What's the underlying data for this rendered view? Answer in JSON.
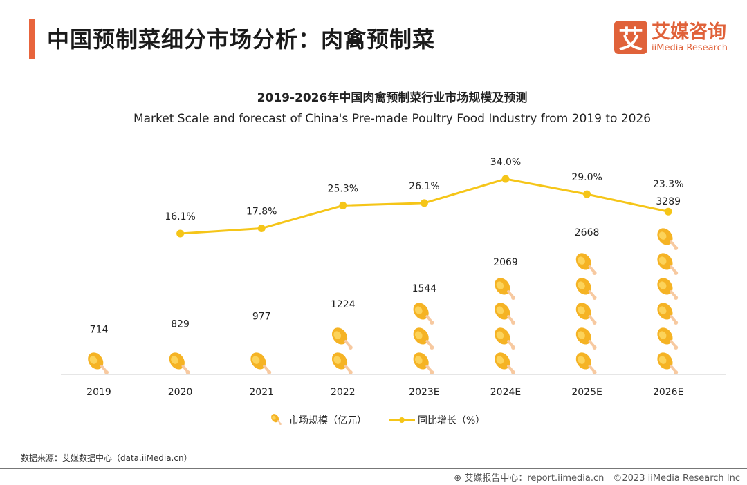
{
  "header": {
    "title": "中国预制菜细分市场分析：肉禽预制菜",
    "logo_glyph": "艾",
    "logo_cn": "艾媒咨询",
    "logo_en": "iiMedia Research",
    "accent": "#e8643c"
  },
  "chart_data": {
    "type": "bar",
    "bar_style": "pictograph-drumstick",
    "title": "2019-2026年中国肉禽预制菜行业市场规模及预测",
    "subtitle": "Market Scale and forecast of China's Pre-made Poultry Food Industry from 2019 to 2026",
    "categories": [
      "2019",
      "2020",
      "2021",
      "2022",
      "2023E",
      "2024E",
      "2025E",
      "2026E"
    ],
    "series": [
      {
        "name": "市场规模（亿元）",
        "type": "bar",
        "values": [
          714,
          829,
          977,
          1224,
          1544,
          2069,
          2668,
          3289
        ],
        "color": "#f5b324"
      },
      {
        "name": "同比增长（%）",
        "type": "line",
        "values": [
          null,
          16.1,
          17.8,
          25.3,
          26.1,
          34.0,
          29.0,
          23.3
        ],
        "labels": [
          "",
          "16.1%",
          "17.8%",
          "25.3%",
          "26.1%",
          "34.0%",
          "29.0%",
          "23.3%"
        ],
        "color": "#f5c518"
      }
    ],
    "legend": "bottom"
  },
  "footer": {
    "source": "数据来源：艾媒数据中心（data.iiMedia.cn）",
    "report": "艾媒报告中心：report.iimedia.cn　©2023  iiMedia Research  Inc"
  }
}
